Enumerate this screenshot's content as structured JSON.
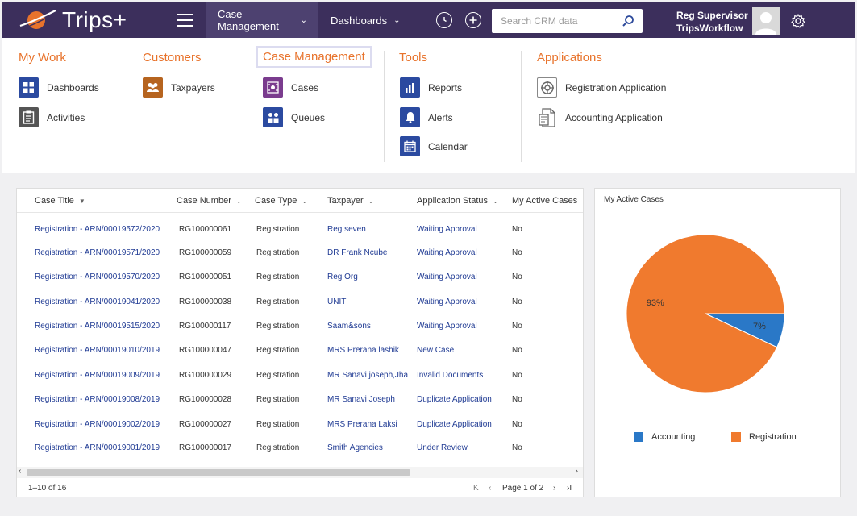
{
  "app": {
    "name": "Trips+"
  },
  "topnav": {
    "items": [
      {
        "label": "Case Management"
      },
      {
        "label": "Dashboards"
      }
    ],
    "search_placeholder": "Search CRM data",
    "user": {
      "line1": "Reg Supervisor",
      "line2": "TripsWorkflow"
    }
  },
  "megamenu": {
    "my_work": {
      "heading": "My Work",
      "items": [
        {
          "label": "Dashboards",
          "icon": "dashboard-tiles-icon"
        },
        {
          "label": "Activities",
          "icon": "clipboard-icon"
        }
      ]
    },
    "customers": {
      "heading": "Customers",
      "items": [
        {
          "label": "Taxpayers",
          "icon": "people-icon"
        }
      ]
    },
    "case_management": {
      "heading": "Case Management",
      "items": [
        {
          "label": "Cases",
          "icon": "cases-icon"
        },
        {
          "label": "Queues",
          "icon": "queues-icon"
        }
      ]
    },
    "tools": {
      "heading": "Tools",
      "items": [
        {
          "label": "Reports",
          "icon": "reports-icon"
        },
        {
          "label": "Alerts",
          "icon": "bell-icon"
        },
        {
          "label": "Calendar",
          "icon": "calendar-icon"
        }
      ]
    },
    "applications": {
      "heading": "Applications",
      "items": [
        {
          "label": "Registration Application",
          "icon": "registration-app-icon"
        },
        {
          "label": "Accounting Application",
          "icon": "accounting-app-icon"
        }
      ]
    }
  },
  "grid": {
    "columns": [
      "Case Title",
      "Case Number",
      "Case Type",
      "Taxpayer",
      "Application Status",
      "My Active Cases"
    ],
    "rows": [
      {
        "title": "Registration - ARN/00019572/2020",
        "number": "RG100000061",
        "type": "Registration",
        "taxpayer": "Reg seven",
        "status": "Waiting Approval",
        "mine": "No"
      },
      {
        "title": "Registration - ARN/00019571/2020",
        "number": "RG100000059",
        "type": "Registration",
        "taxpayer": "DR Frank Ncube",
        "status": "Waiting Approval",
        "mine": "No"
      },
      {
        "title": "Registration - ARN/00019570/2020",
        "number": "RG100000051",
        "type": "Registration",
        "taxpayer": "Reg Org",
        "status": "Waiting Approval",
        "mine": "No"
      },
      {
        "title": "Registration - ARN/00019041/2020",
        "number": "RG100000038",
        "type": "Registration",
        "taxpayer": "UNIT",
        "status": "Waiting Approval",
        "mine": "No"
      },
      {
        "title": "Registration - ARN/00019515/2020",
        "number": "RG100000117",
        "type": "Registration",
        "taxpayer": "Saam&sons",
        "status": "Waiting Approval",
        "mine": "No"
      },
      {
        "title": "Registration - ARN/00019010/2019",
        "number": "RG100000047",
        "type": "Registration",
        "taxpayer": "MRS Prerana lashik",
        "status": "New Case",
        "mine": "No"
      },
      {
        "title": "Registration - ARN/00019009/2019",
        "number": "RG100000029",
        "type": "Registration",
        "taxpayer": "MR Sanavi joseph,Jha",
        "status": "Invalid Documents",
        "mine": "No"
      },
      {
        "title": "Registration - ARN/00019008/2019",
        "number": "RG100000028",
        "type": "Registration",
        "taxpayer": "MR Sanavi Joseph",
        "status": "Duplicate Application",
        "mine": "No"
      },
      {
        "title": "Registration - ARN/00019002/2019",
        "number": "RG100000027",
        "type": "Registration",
        "taxpayer": "MRS Prerana Laksi",
        "status": "Duplicate Application",
        "mine": "No"
      },
      {
        "title": "Registration - ARN/00019001/2019",
        "number": "RG100000017",
        "type": "Registration",
        "taxpayer": "Smith Agencies",
        "status": "Under Review",
        "mine": "No"
      }
    ],
    "footer": {
      "range": "1–10 of 16",
      "page": "Page 1 of 2"
    }
  },
  "colors": {
    "nav_bg": "#3c2f5c",
    "accent_orange": "#e8732c",
    "link_blue": "#1f3a93",
    "pie_orange": "#f07a2e",
    "pie_blue": "#2a78c7"
  },
  "chart_data": {
    "type": "pie",
    "title": "My Active Cases",
    "categories": [
      "Accounting",
      "Registration"
    ],
    "values": [
      7,
      93
    ],
    "labels": [
      "7%",
      "93%"
    ],
    "colors": [
      "#2a78c7",
      "#f07a2e"
    ],
    "legend": "bottom"
  }
}
